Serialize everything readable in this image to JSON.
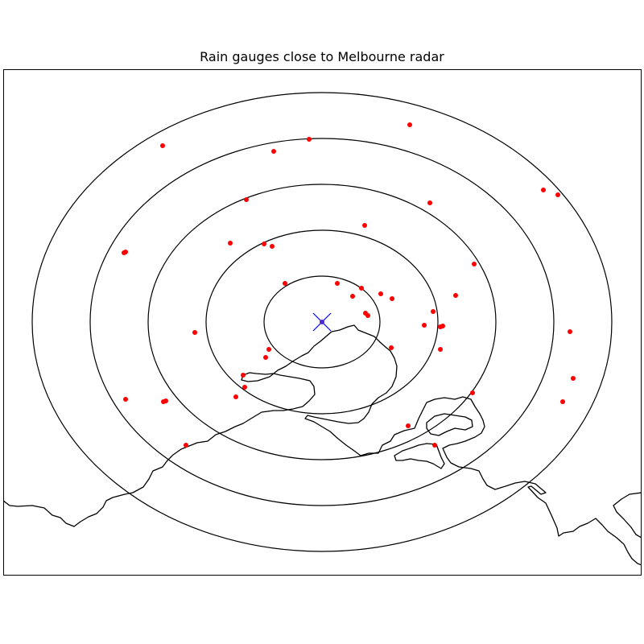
{
  "title": "Rain gauges close to Melbourne radar",
  "colors": {
    "gauge": "#ff0000",
    "radar": "#0000ff",
    "rings": "#000000",
    "coastline": "#000000",
    "frame": "#000000"
  },
  "radar": {
    "marker_icon": "x-marker-icon",
    "center_dot_icon": "dot-icon",
    "range_rings_count": 5
  },
  "rain_gauges_count": 51,
  "legend": null
}
